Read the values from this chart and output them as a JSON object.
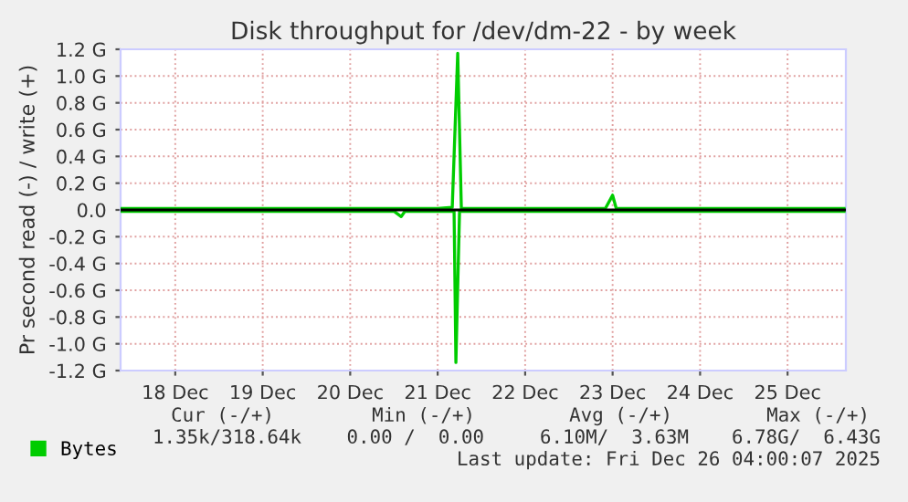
{
  "chart_data": {
    "type": "line",
    "title": "Disk throughput for /dev/dm-22 - by week",
    "ylabel": "Pr second read (-) / write (+)",
    "series": [
      {
        "name": "Bytes",
        "color": "#00cc00",
        "x": [
          "2025-12-17T21:00",
          "2025-12-19T00:00",
          "2025-12-20T00:00",
          "2025-12-21T12:00",
          "2025-12-21T16:00",
          "2025-12-21T17:30",
          "2025-12-21T18:30",
          "2025-12-23T10:00",
          "2025-12-23T12:00",
          "2025-12-23T13:00",
          "2025-12-26T03:30"
        ],
        "values": [
          0.01,
          0.01,
          0.01,
          0.01,
          0.02,
          1.17,
          0.01,
          0.01,
          0.11,
          0.01,
          0.01
        ]
      },
      {
        "color": "#00cc00",
        "x": [
          "2025-12-17T21:00",
          "2025-12-21T00:00",
          "2025-12-21T02:00",
          "2025-12-21T03:00",
          "2025-12-21T16:30",
          "2025-12-21T17:00",
          "2025-12-21T18:00",
          "2025-12-26T03:30"
        ],
        "values": [
          -0.01,
          -0.01,
          -0.05,
          -0.01,
          -0.01,
          -1.14,
          -0.01,
          -0.01
        ]
      }
    ],
    "xlim": [
      "2025-12-17T21:00",
      "2025-12-26T04:00"
    ],
    "xticks": [
      {
        "value": "2025-12-18T12:00",
        "label": "18 Dec"
      },
      {
        "value": "2025-12-19T12:00",
        "label": "19 Dec"
      },
      {
        "value": "2025-12-20T12:00",
        "label": "20 Dec"
      },
      {
        "value": "2025-12-21T12:00",
        "label": "21 Dec"
      },
      {
        "value": "2025-12-22T12:00",
        "label": "22 Dec"
      },
      {
        "value": "2025-12-23T12:00",
        "label": "23 Dec"
      },
      {
        "value": "2025-12-24T12:00",
        "label": "24 Dec"
      },
      {
        "value": "2025-12-25T12:00",
        "label": "25 Dec"
      }
    ],
    "ylim": [
      -1.2,
      1.2
    ],
    "yticks": [
      {
        "value": -1.2,
        "label": "-1.2 G"
      },
      {
        "value": -1.0,
        "label": "-1.0 G"
      },
      {
        "value": -0.8,
        "label": "-0.8 G"
      },
      {
        "value": -0.6,
        "label": "-0.6 G"
      },
      {
        "value": -0.4,
        "label": "-0.4 G"
      },
      {
        "value": -0.2,
        "label": "-0.2 G"
      },
      {
        "value": 0,
        "label": "0.0"
      },
      {
        "value": 0.2,
        "label": "0.2 G"
      },
      {
        "value": 0.4,
        "label": "0.4 G"
      },
      {
        "value": 0.6,
        "label": "0.6 G"
      },
      {
        "value": 0.8,
        "label": "0.8 G"
      },
      {
        "value": 1.0,
        "label": "1.0 G"
      },
      {
        "value": 1.2,
        "label": "1.2 G"
      }
    ],
    "ref_lines": [
      {
        "axis": "y",
        "value": 0,
        "color": "#000000"
      }
    ],
    "grid": true,
    "legend": "bottom left",
    "marker": "none",
    "line_style": "solid",
    "annotations": [
      "Cur (-/+)",
      "Min (-/+)",
      "Avg (-/+)",
      "Max (-/+)",
      "1.35k/318.64k",
      "0.00 /  0.00",
      "6.10M/  3.63M",
      "6.78G/  6.43G",
      "Last update: Fri Dec 26 04:00:07 2025"
    ]
  }
}
